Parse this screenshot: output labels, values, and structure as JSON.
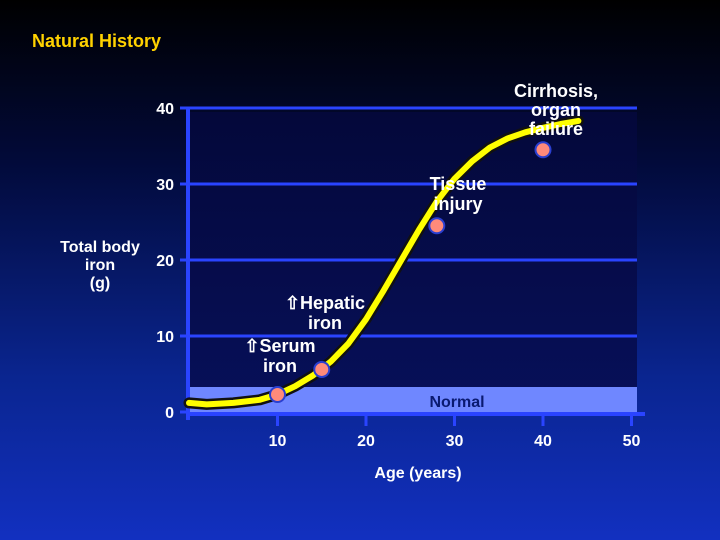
{
  "slide": {
    "title": "Natural History"
  },
  "colors": {
    "title": "#ffd200",
    "curve": "#ffff00",
    "curve_outline": "#111111",
    "marker_fill": "#ff8a7a",
    "marker_edge": "#2a3fd0",
    "normal_band": "#6f87ff",
    "grid": "#2a44ff",
    "plot_bg_top": "#04083a",
    "plot_bg_bottom": "#07105a"
  },
  "chart_data": {
    "type": "line",
    "title": "",
    "xlabel": "Age (years)",
    "ylabel_lines": [
      "Total body",
      "iron",
      "(g)"
    ],
    "xlim": [
      0,
      50
    ],
    "ylim": [
      0,
      40
    ],
    "x_ticks": [
      10,
      20,
      30,
      40,
      50
    ],
    "y_ticks": [
      0,
      10,
      20,
      30,
      40
    ],
    "grid": true,
    "normal_band": {
      "label": "Normal",
      "y_range": [
        0,
        3
      ]
    },
    "series": [
      {
        "x": [
          0,
          2,
          5,
          8,
          10,
          12,
          14,
          16,
          18,
          20,
          22,
          24,
          26,
          28,
          30,
          32,
          34,
          36,
          38,
          40,
          42,
          44
        ],
        "y": [
          1.2,
          1.0,
          1.2,
          1.6,
          2.3,
          3.4,
          4.8,
          6.6,
          9.0,
          12.2,
          16.0,
          20.0,
          24.0,
          27.7,
          30.7,
          33.0,
          34.8,
          36.0,
          36.8,
          37.4,
          37.9,
          38.3
        ]
      }
    ],
    "markers": [
      {
        "x": 10,
        "y": 2.3
      },
      {
        "x": 15,
        "y": 5.6
      },
      {
        "x": 28,
        "y": 24.5
      },
      {
        "x": 40,
        "y": 34.5
      }
    ],
    "annotations": [
      {
        "lines": [
          "Cirrhosis,",
          "organ",
          "failure"
        ]
      },
      {
        "lines": [
          "Tissue",
          "injury"
        ]
      },
      {
        "lines": [
          "⇧Hepatic",
          "iron"
        ]
      },
      {
        "lines": [
          "⇧Serum",
          "iron"
        ]
      }
    ]
  }
}
